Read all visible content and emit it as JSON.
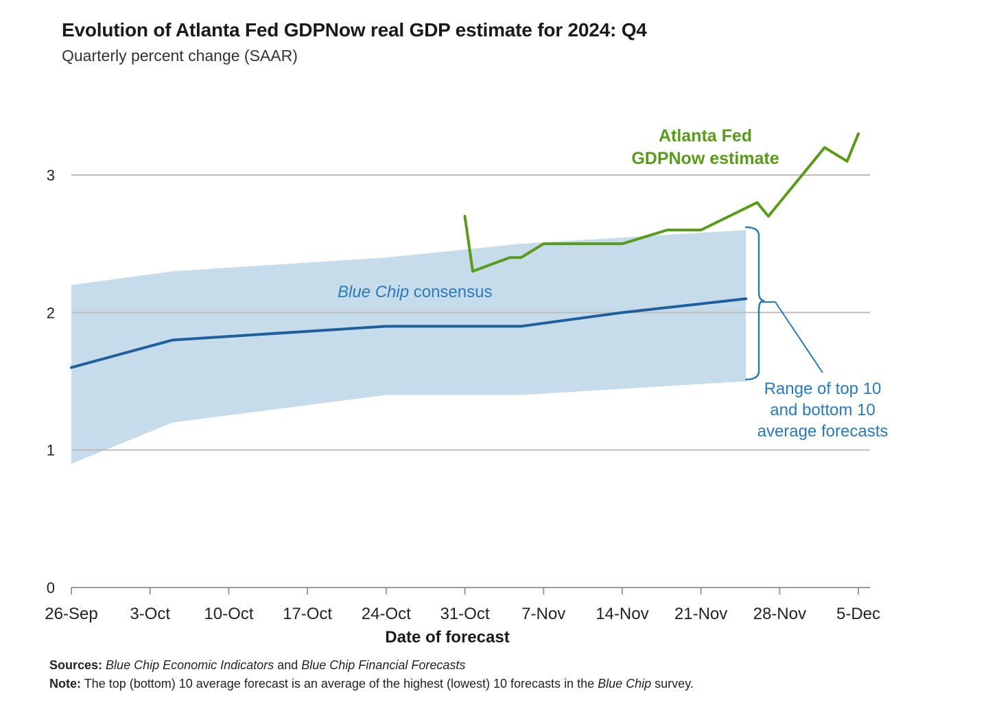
{
  "chart_data": {
    "type": "line",
    "title": "Evolution of Atlanta Fed GDPNow real GDP estimate for 2024: Q4",
    "subtitle": "Quarterly percent change (SAAR)",
    "xlabel": "Date of forecast",
    "ylabel": "",
    "ylim": [
      0,
      3.5
    ],
    "yticks": [
      0,
      1,
      2,
      3
    ],
    "grid": true,
    "x_tick_labels": [
      "26-Sep",
      "3-Oct",
      "10-Oct",
      "17-Oct",
      "24-Oct",
      "31-Oct",
      "7-Nov",
      "14-Nov",
      "21-Nov",
      "28-Nov",
      "5-Dec"
    ],
    "x_tick_days": [
      0,
      7,
      14,
      21,
      28,
      35,
      42,
      49,
      56,
      63,
      70
    ],
    "series": [
      {
        "name": "GDPNow estimate",
        "color": "#5a9a1a",
        "x": [
          35,
          35.7,
          39,
          40,
          42,
          49,
          53,
          56,
          61,
          62,
          67,
          69,
          70
        ],
        "y": [
          2.7,
          2.3,
          2.4,
          2.4,
          2.5,
          2.5,
          2.6,
          2.6,
          2.8,
          2.7,
          3.2,
          3.1,
          3.3
        ]
      },
      {
        "name": "Blue Chip consensus",
        "color": "#1f5f9e",
        "x": [
          0,
          9,
          28,
          40,
          49,
          60
        ],
        "y": [
          1.6,
          1.8,
          1.9,
          1.9,
          2.0,
          2.1
        ]
      }
    ],
    "band": {
      "name": "Range of top 10 and bottom 10 average forecasts",
      "color": "#c6dcea",
      "x": [
        0,
        9,
        28,
        40,
        60
      ],
      "upper": [
        2.2,
        2.3,
        2.4,
        2.5,
        2.6
      ],
      "lower": [
        0.9,
        1.2,
        1.4,
        1.4,
        1.5
      ]
    }
  },
  "annotations": {
    "gdpnow_line1": "Atlanta Fed",
    "gdpnow_line2": "GDPNow estimate",
    "consensus_italic": "Blue Chip",
    "consensus_rest": "consensus",
    "range_line1": "Range of top 10",
    "range_line2": "and bottom 10",
    "range_line3": "average forecasts"
  },
  "footer": {
    "sources_label": "Sources:",
    "sources_text_1": "Blue Chip Economic Indicators",
    "sources_and": "and",
    "sources_text_2": "Blue Chip Financial Forecasts",
    "note_label": "Note:",
    "note_text_1": "The top (bottom) 10 average forecast is an average of the highest (lowest) 10 forecasts in the",
    "note_italic": "Blue Chip",
    "note_text_2": "survey."
  }
}
